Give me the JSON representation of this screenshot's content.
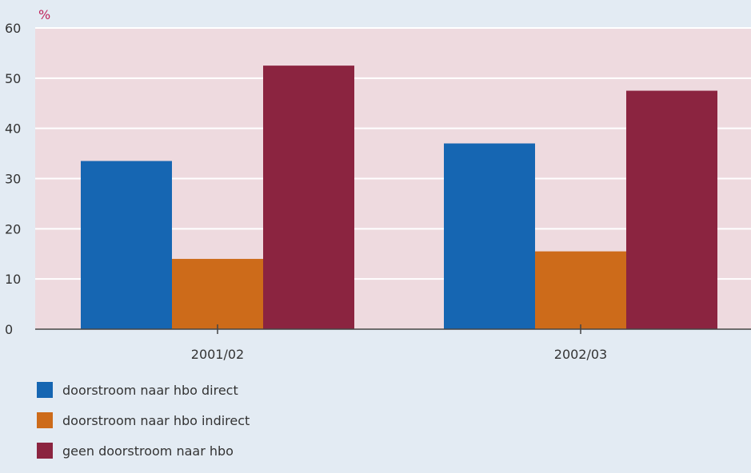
{
  "chart_data": {
    "type": "bar",
    "unit_label": "%",
    "categories": [
      "2001/02",
      "2002/03"
    ],
    "series": [
      {
        "name": "doorstroom naar hbo direct",
        "color": "#1666b2",
        "values": [
          33.5,
          37
        ]
      },
      {
        "name": "doorstroom naar hbo indirect",
        "color": "#cd6b1a",
        "values": [
          14,
          15.5
        ]
      },
      {
        "name": "geen doorstroom naar hbo",
        "color": "#8b2440",
        "values": [
          52.5,
          47.5
        ]
      }
    ],
    "ylim": [
      0,
      60
    ],
    "yticks": [
      0,
      10,
      20,
      30,
      40,
      50,
      60
    ],
    "grid": true,
    "legend_position": "bottom-left",
    "colors": {
      "plot_background": "#eedadf",
      "page_background": "#e3ebf3",
      "gridline": "#ffffff",
      "unit_label": "#c0245c"
    }
  }
}
